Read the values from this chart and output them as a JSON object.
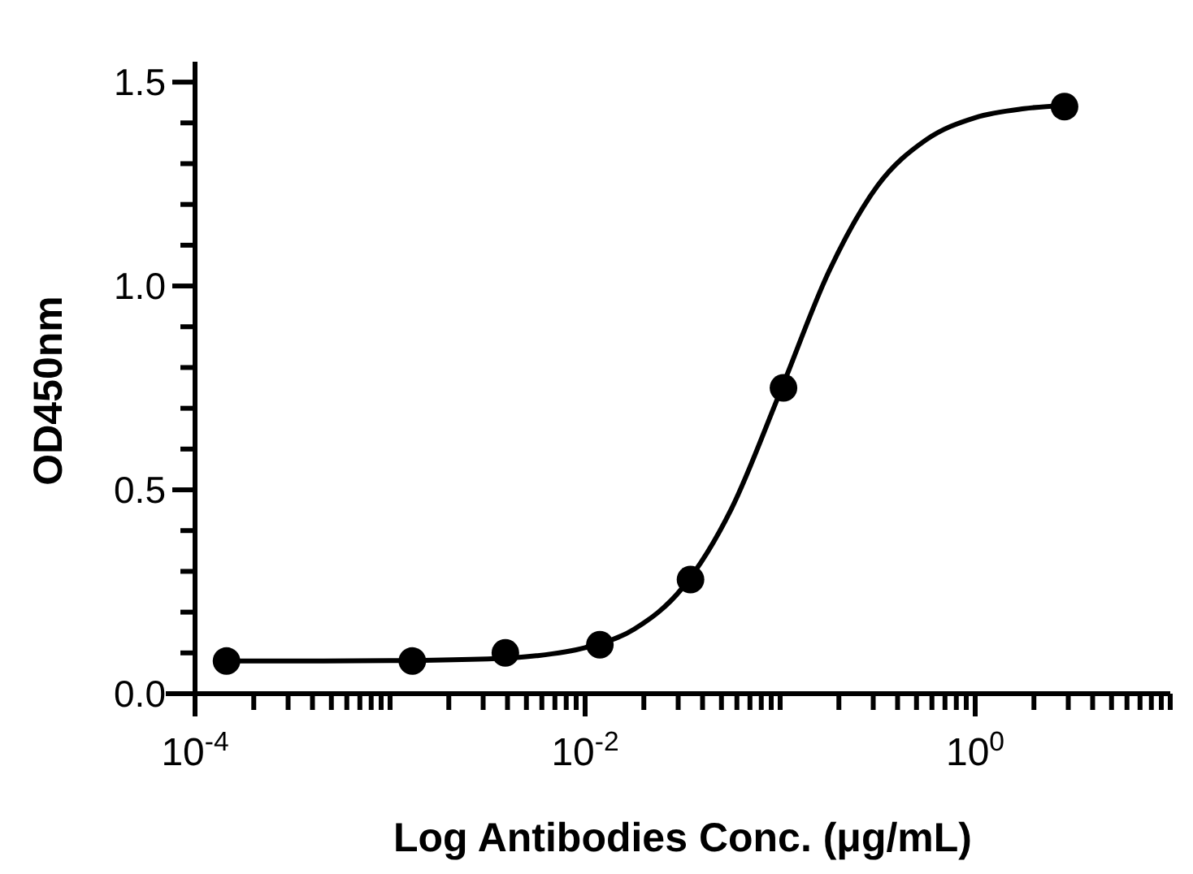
{
  "chart_data": {
    "type": "scatter",
    "xlabel": "Log Antibodies Conc. (μg/mL)",
    "ylabel": "OD450nm",
    "log": "x",
    "grid": false,
    "xlim": [
      0.0001,
      10
    ],
    "ylim": [
      0,
      1.55
    ],
    "xticks": [
      {
        "value": 0.0001,
        "label": "10$^{-4}$"
      },
      {
        "value": 0.0002,
        "label": null
      },
      {
        "value": 0.0003,
        "label": null
      },
      {
        "value": 0.0004,
        "label": null
      },
      {
        "value": 0.0005,
        "label": null
      },
      {
        "value": 0.0006,
        "label": null
      },
      {
        "value": 0.0007,
        "label": null
      },
      {
        "value": 0.0008,
        "label": null
      },
      {
        "value": 0.0009,
        "label": null
      },
      {
        "value": 0.001,
        "label": null
      },
      {
        "value": 0.002,
        "label": null
      },
      {
        "value": 0.003,
        "label": null
      },
      {
        "value": 0.004,
        "label": null
      },
      {
        "value": 0.005,
        "label": null
      },
      {
        "value": 0.006,
        "label": null
      },
      {
        "value": 0.007,
        "label": null
      },
      {
        "value": 0.008,
        "label": null
      },
      {
        "value": 0.009,
        "label": null
      },
      {
        "value": 0.01,
        "label": "10$^{-2}$"
      },
      {
        "value": 0.02,
        "label": null
      },
      {
        "value": 0.03,
        "label": null
      },
      {
        "value": 0.04,
        "label": null
      },
      {
        "value": 0.05,
        "label": null
      },
      {
        "value": 0.06,
        "label": null
      },
      {
        "value": 0.07,
        "label": null
      },
      {
        "value": 0.08,
        "label": null
      },
      {
        "value": 0.09,
        "label": null
      },
      {
        "value": 0.1,
        "label": null
      },
      {
        "value": 0.2,
        "label": null
      },
      {
        "value": 0.3,
        "label": null
      },
      {
        "value": 0.4,
        "label": null
      },
      {
        "value": 0.5,
        "label": null
      },
      {
        "value": 0.6,
        "label": null
      },
      {
        "value": 0.7,
        "label": null
      },
      {
        "value": 0.8,
        "label": null
      },
      {
        "value": 0.9,
        "label": null
      },
      {
        "value": 1,
        "label": "10$^{0}$"
      },
      {
        "value": 2,
        "label": null
      },
      {
        "value": 3,
        "label": null
      },
      {
        "value": 4,
        "label": null
      },
      {
        "value": 5,
        "label": null
      },
      {
        "value": 6,
        "label": null
      },
      {
        "value": 7,
        "label": null
      },
      {
        "value": 8,
        "label": null
      },
      {
        "value": 9,
        "label": null
      },
      {
        "value": 10,
        "label": null
      }
    ],
    "yticks": [
      {
        "value": 0,
        "label": "0.0"
      },
      {
        "value": 0.1,
        "label": null
      },
      {
        "value": 0.2,
        "label": null
      },
      {
        "value": 0.3,
        "label": null
      },
      {
        "value": 0.4,
        "label": null
      },
      {
        "value": 0.5,
        "label": "0.5"
      },
      {
        "value": 0.6,
        "label": null
      },
      {
        "value": 0.7,
        "label": null
      },
      {
        "value": 0.8,
        "label": null
      },
      {
        "value": 0.9,
        "label": null
      },
      {
        "value": 1,
        "label": "1.0"
      },
      {
        "value": 1.1,
        "label": null
      },
      {
        "value": 1.2,
        "label": null
      },
      {
        "value": 1.3,
        "label": null
      },
      {
        "value": 1.4,
        "label": null
      },
      {
        "value": 1.5,
        "label": "1.5"
      }
    ],
    "series": [
      {
        "type": "line",
        "color": "#000000",
        "marker": "none",
        "line_style": "solid",
        "x": [
          0.000145,
          0.001,
          0.00316,
          0.00562,
          0.01,
          0.0178,
          0.0316,
          0.0562,
          0.1,
          0.178,
          0.316,
          0.562,
          1,
          1.78,
          2.87
        ],
        "values": [
          0.08,
          0.081,
          0.085,
          0.093,
          0.113,
          0.158,
          0.26,
          0.453,
          0.74,
          1.036,
          1.246,
          1.359,
          1.413,
          1.435,
          1.443
        ]
      },
      {
        "color": "#000000",
        "marker": "circle",
        "x": [
          0.000145,
          0.0013,
          0.0039,
          0.0119,
          0.0347,
          0.104,
          2.87
        ],
        "values": [
          0.08,
          0.08,
          0.1,
          0.12,
          0.28,
          0.75,
          1.44
        ]
      }
    ]
  }
}
